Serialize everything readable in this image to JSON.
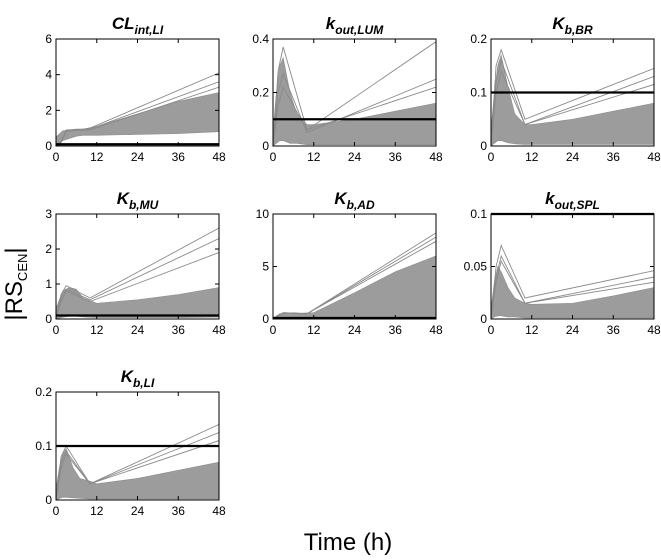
{
  "figure": {
    "xlabel": "Time (h)",
    "ylabel": {
      "main": "|RS",
      "sub": "CEN",
      "end": "|"
    }
  },
  "chart_data": [
    {
      "type": "line",
      "title": {
        "main": "CL",
        "sub": "int,LI"
      },
      "x_ticks": [
        0,
        12,
        24,
        36,
        48
      ],
      "y_ticks": [
        "0",
        "2",
        "4",
        "6"
      ],
      "ylim": [
        0,
        6
      ],
      "threshold": 0.1,
      "envelope": {
        "x": [
          0,
          2,
          6,
          8,
          12,
          24,
          36,
          48
        ],
        "upper": [
          0.5,
          0.85,
          0.95,
          0.95,
          1.1,
          1.8,
          2.5,
          3.0
        ],
        "lower": [
          0.05,
          0.3,
          0.55,
          0.6,
          0.6,
          0.65,
          0.7,
          0.8
        ]
      },
      "outliers": [
        [
          0,
          0.2,
          0.8,
          1.0,
          4.1
        ],
        [
          0,
          0.25,
          0.9,
          0.95,
          3.6
        ],
        [
          0,
          0.2,
          0.85,
          0.9,
          3.3
        ]
      ]
    },
    {
      "type": "line",
      "title": {
        "main": "k",
        "sub": "out,LUM"
      },
      "x_ticks": [
        0,
        12,
        24,
        36,
        48
      ],
      "y_ticks": [
        "0",
        "0.2",
        "0.4"
      ],
      "ylim": [
        0,
        0.4
      ],
      "threshold": 0.1,
      "envelope": {
        "x": [
          0,
          1,
          2,
          3,
          5,
          7,
          10,
          12,
          24,
          36,
          48
        ],
        "upper": [
          0.05,
          0.2,
          0.3,
          0.33,
          0.2,
          0.12,
          0.08,
          0.08,
          0.1,
          0.13,
          0.16
        ],
        "lower": [
          0.0,
          0.01,
          0.02,
          0.02,
          0.01,
          0.01,
          0.005,
          0.005,
          0.005,
          0.005,
          0.005
        ]
      },
      "outliers": [
        [
          0,
          0.28,
          0.37,
          0.06,
          0.39
        ],
        [
          0,
          0.2,
          0.27,
          0.05,
          0.25
        ],
        [
          0,
          0.15,
          0.22,
          0.06,
          0.22
        ]
      ]
    },
    {
      "type": "line",
      "title": {
        "main": "K",
        "sub": "b,BR"
      },
      "x_ticks": [
        0,
        12,
        24,
        36,
        48
      ],
      "y_ticks": [
        "0",
        "0.1",
        "0.2"
      ],
      "ylim": [
        0,
        0.2
      ],
      "threshold": 0.1,
      "envelope": {
        "x": [
          0,
          1,
          2,
          3,
          5,
          7,
          10,
          12,
          24,
          36,
          48
        ],
        "upper": [
          0.03,
          0.1,
          0.15,
          0.17,
          0.11,
          0.06,
          0.04,
          0.04,
          0.05,
          0.065,
          0.08
        ],
        "lower": [
          0.0,
          0.005,
          0.01,
          0.01,
          0.006,
          0.004,
          0.003,
          0.003,
          0.003,
          0.003,
          0.003
        ]
      },
      "outliers": [
        [
          0,
          0.15,
          0.18,
          0.05,
          0.145
        ],
        [
          0,
          0.12,
          0.16,
          0.04,
          0.13
        ],
        [
          0,
          0.1,
          0.14,
          0.04,
          0.115
        ]
      ]
    },
    {
      "type": "line",
      "title": {
        "main": "K",
        "sub": "b,MU"
      },
      "x_ticks": [
        0,
        12,
        24,
        36,
        48
      ],
      "y_ticks": [
        "0",
        "1",
        "2",
        "3"
      ],
      "ylim": [
        0,
        3
      ],
      "threshold": 0.1,
      "envelope": {
        "x": [
          0,
          2,
          4,
          6,
          8,
          12,
          24,
          36,
          48
        ],
        "upper": [
          0.3,
          0.8,
          0.9,
          0.85,
          0.6,
          0.45,
          0.55,
          0.7,
          0.9
        ],
        "lower": [
          0.0,
          0.05,
          0.08,
          0.08,
          0.06,
          0.04,
          0.04,
          0.04,
          0.05
        ]
      },
      "outliers": [
        [
          0,
          0.7,
          0.95,
          0.6,
          2.6
        ],
        [
          0,
          0.6,
          0.85,
          0.55,
          2.3
        ],
        [
          0,
          0.5,
          0.8,
          0.5,
          1.9
        ]
      ]
    },
    {
      "type": "line",
      "title": {
        "main": "K",
        "sub": "b,AD"
      },
      "x_ticks": [
        0,
        12,
        24,
        36,
        48
      ],
      "y_ticks": [
        "0",
        "5",
        "10"
      ],
      "ylim": [
        0,
        10
      ],
      "threshold": 0.1,
      "envelope": {
        "x": [
          0,
          2,
          6,
          8,
          12,
          24,
          36,
          48
        ],
        "upper": [
          0.1,
          0.5,
          0.6,
          0.55,
          0.6,
          2.5,
          4.5,
          6.0
        ],
        "lower": [
          0.0,
          0.05,
          0.1,
          0.1,
          0.1,
          0.1,
          0.1,
          0.1
        ]
      },
      "outliers": [
        [
          0,
          0.3,
          0.6,
          0.5,
          8.2
        ],
        [
          0,
          0.3,
          0.6,
          0.5,
          7.8
        ],
        [
          0,
          0.25,
          0.55,
          0.5,
          7.4
        ]
      ]
    },
    {
      "type": "line",
      "title": {
        "main": "k",
        "sub": "out,SPL"
      },
      "x_ticks": [
        0,
        12,
        24,
        36,
        48
      ],
      "y_ticks": [
        "0",
        "0.05",
        "0.1"
      ],
      "ylim": [
        0,
        0.1
      ],
      "threshold": 0.1,
      "envelope": {
        "x": [
          0,
          1,
          2,
          3,
          5,
          7,
          10,
          12,
          24,
          36,
          48
        ],
        "upper": [
          0.01,
          0.035,
          0.05,
          0.045,
          0.03,
          0.02,
          0.015,
          0.014,
          0.015,
          0.022,
          0.03
        ],
        "lower": [
          0.0,
          0.002,
          0.003,
          0.003,
          0.002,
          0.002,
          0.001,
          0.001,
          0.001,
          0.001,
          0.001
        ]
      },
      "outliers": [
        [
          0,
          0.05,
          0.07,
          0.02,
          0.046
        ],
        [
          0,
          0.04,
          0.06,
          0.015,
          0.04
        ],
        [
          0,
          0.035,
          0.055,
          0.015,
          0.035
        ]
      ]
    },
    {
      "type": "line",
      "title": {
        "main": "K",
        "sub": "b,LI"
      },
      "x_ticks": [
        0,
        12,
        24,
        36,
        48
      ],
      "y_ticks": [
        "0",
        "0.1",
        "0.2"
      ],
      "ylim": [
        0,
        0.2
      ],
      "threshold": 0.1,
      "envelope": {
        "x": [
          0,
          1,
          2,
          3,
          5,
          7,
          10,
          12,
          24,
          36,
          48
        ],
        "upper": [
          0.02,
          0.06,
          0.085,
          0.095,
          0.06,
          0.04,
          0.035,
          0.03,
          0.04,
          0.055,
          0.07
        ],
        "lower": [
          0.0,
          0.003,
          0.005,
          0.005,
          0.004,
          0.003,
          0.002,
          0.002,
          0.002,
          0.002,
          0.002
        ]
      },
      "outliers": [
        [
          0,
          0.08,
          0.1,
          0.03,
          0.14
        ],
        [
          0,
          0.07,
          0.09,
          0.03,
          0.125
        ],
        [
          0,
          0.06,
          0.085,
          0.03,
          0.11
        ]
      ]
    }
  ]
}
